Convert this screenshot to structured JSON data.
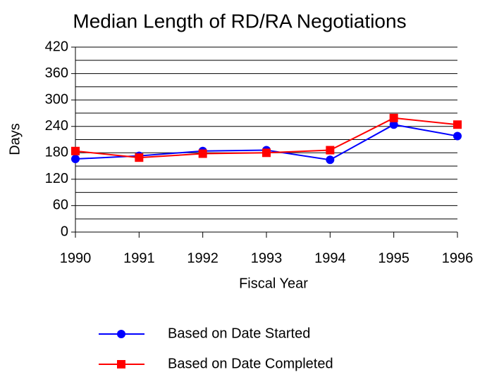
{
  "chart_data": {
    "type": "line",
    "title": "Median Length of RD/RA Negotiations",
    "x_label": "Fiscal Year",
    "y_label": "Days",
    "categories": [
      "1990",
      "1991",
      "1992",
      "1993",
      "1994",
      "1995",
      "1996"
    ],
    "series": [
      {
        "name": "Based on Date Started",
        "color": "#0000ff",
        "marker": "circle",
        "values": [
          166,
          173,
          184,
          186,
          164,
          244,
          218
        ]
      },
      {
        "name": "Based on Date Completed",
        "color": "#ff0000",
        "marker": "square",
        "values": [
          184,
          169,
          178,
          180,
          186,
          259,
          244
        ]
      }
    ],
    "ylim": [
      0,
      420
    ],
    "yticks": [
      0,
      60,
      120,
      180,
      240,
      300,
      360,
      420
    ],
    "y_minor_ticks": [
      30,
      90,
      150,
      210,
      270,
      330,
      390
    ],
    "grid": true,
    "legend": "bottom"
  }
}
